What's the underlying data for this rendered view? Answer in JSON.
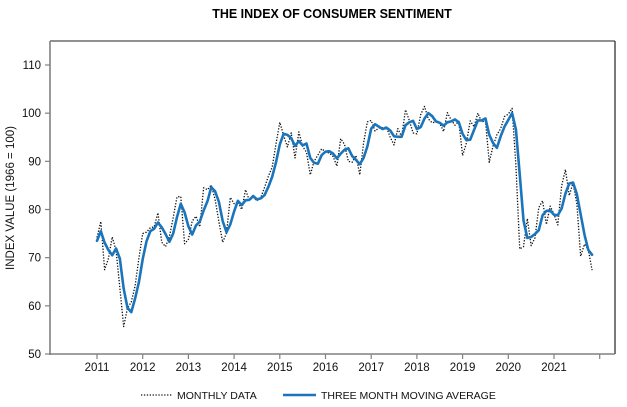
{
  "chart_data": {
    "type": "line",
    "title": "THE INDEX OF CONSUMER SENTIMENT",
    "xlabel": "",
    "ylabel": "INDEX VALUE (1966 = 100)",
    "ylim": [
      50,
      115
    ],
    "yticks": [
      50,
      60,
      70,
      80,
      90,
      100,
      110
    ],
    "xticks": [
      "2011",
      "2012",
      "2013",
      "2014",
      "2015",
      "2016",
      "2017",
      "2018",
      "2019",
      "2020",
      "2021"
    ],
    "x_start": "2011-01",
    "x_end_axis": "2022-01",
    "frequency": "monthly",
    "grid": false,
    "legend_position": "bottom",
    "colors": {
      "monthly": "#111111",
      "moving_average": "#1a75bc",
      "axis": "#808080"
    },
    "series": [
      {
        "name": "MONTHLY DATA",
        "style": "dotted",
        "values": [
          74.2,
          77.5,
          67.5,
          69.8,
          74.3,
          71.5,
          63.7,
          55.7,
          59.5,
          60.8,
          64.1,
          69.9,
          75.0,
          75.3,
          76.2,
          76.4,
          79.3,
          73.2,
          72.3,
          74.3,
          78.3,
          82.6,
          82.7,
          72.9,
          73.8,
          77.6,
          78.6,
          76.4,
          84.5,
          84.1,
          85.1,
          82.1,
          77.5,
          73.2,
          75.1,
          82.5,
          81.2,
          81.6,
          80.0,
          84.1,
          81.9,
          82.5,
          81.8,
          82.5,
          84.6,
          86.9,
          88.8,
          93.6,
          98.1,
          95.4,
          93.0,
          95.9,
          90.7,
          96.1,
          93.1,
          91.9,
          87.2,
          90.0,
          91.3,
          92.6,
          92.0,
          91.7,
          91.0,
          89.0,
          94.7,
          93.5,
          90.0,
          89.8,
          91.2,
          87.2,
          93.8,
          98.2,
          98.5,
          96.3,
          96.9,
          97.0,
          97.1,
          95.0,
          93.4,
          96.8,
          95.1,
          100.7,
          98.5,
          95.9,
          95.7,
          99.7,
          101.4,
          98.8,
          98.0,
          98.2,
          97.9,
          96.2,
          100.1,
          98.6,
          97.5,
          98.3,
          91.2,
          93.8,
          98.4,
          97.2,
          100.0,
          98.2,
          98.4,
          89.8,
          93.2,
          95.5,
          96.8,
          99.3,
          99.8,
          101.0,
          89.1,
          71.8,
          72.3,
          78.1,
          72.5,
          74.1,
          80.4,
          81.8,
          76.9,
          80.7,
          79.0,
          76.8,
          84.9,
          88.3,
          82.9,
          85.5,
          81.2,
          70.3,
          72.8,
          71.7,
          67.4
        ]
      },
      {
        "name": "THREE MONTH MOVING AVERAGE",
        "style": "solid",
        "values": [
          73.5,
          75.5,
          73.1,
          71.6,
          70.5,
          71.9,
          69.8,
          63.6,
          59.6,
          58.7,
          61.5,
          64.9,
          69.7,
          73.4,
          75.5,
          76.0,
          77.3,
          76.3,
          74.9,
          73.3,
          75.0,
          78.4,
          81.2,
          79.4,
          76.5,
          74.8,
          76.7,
          77.5,
          79.8,
          81.7,
          84.6,
          83.8,
          81.6,
          77.6,
          75.3,
          76.9,
          79.6,
          81.8,
          80.9,
          81.9,
          82.0,
          82.8,
          82.1,
          82.3,
          83.0,
          84.7,
          86.8,
          89.8,
          93.5,
          95.7,
          95.5,
          94.8,
          93.2,
          94.2,
          93.3,
          93.7,
          90.7,
          89.7,
          89.5,
          91.3,
          92.0,
          92.1,
          91.6,
          90.6,
          91.6,
          92.4,
          92.7,
          91.1,
          90.3,
          89.4,
          90.7,
          93.1,
          96.8,
          97.7,
          97.2,
          96.7,
          97.0,
          96.4,
          95.2,
          95.1,
          95.1,
          97.5,
          98.1,
          98.4,
          96.7,
          97.1,
          98.9,
          100.0,
          99.4,
          98.3,
          98.0,
          97.4,
          98.1,
          98.3,
          98.7,
          98.1,
          95.7,
          94.4,
          94.5,
          96.5,
          98.5,
          98.5,
          98.9,
          95.5,
          93.8,
          92.8,
          95.2,
          97.2,
          98.6,
          100.0,
          96.6,
          87.3,
          77.7,
          74.1,
          74.3,
          74.9,
          75.7,
          78.8,
          79.7,
          79.8,
          78.9,
          78.8,
          80.2,
          83.3,
          85.4,
          85.6,
          83.2,
          79.0,
          74.8,
          71.6,
          70.6
        ]
      }
    ]
  }
}
